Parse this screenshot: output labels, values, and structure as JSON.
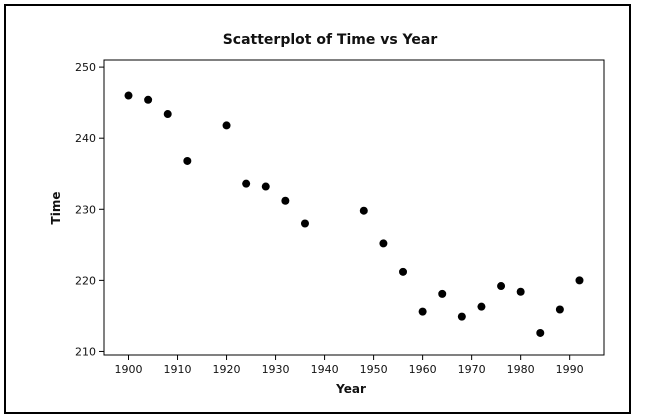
{
  "chart_data": {
    "type": "scatter",
    "title": "Scatterplot of Time vs Year",
    "xlabel": "Year",
    "ylabel": "Time",
    "xlim": [
      1895,
      1997
    ],
    "ylim": [
      209.5,
      251
    ],
    "xticks": [
      1900,
      1910,
      1920,
      1930,
      1940,
      1950,
      1960,
      1970,
      1980,
      1990
    ],
    "yticks": [
      210,
      220,
      230,
      240,
      250
    ],
    "grid": false,
    "points": [
      {
        "x": 1900,
        "y": 246.0
      },
      {
        "x": 1904,
        "y": 245.4
      },
      {
        "x": 1908,
        "y": 243.4
      },
      {
        "x": 1912,
        "y": 236.8
      },
      {
        "x": 1920,
        "y": 241.8
      },
      {
        "x": 1924,
        "y": 233.6
      },
      {
        "x": 1928,
        "y": 233.2
      },
      {
        "x": 1932,
        "y": 231.2
      },
      {
        "x": 1936,
        "y": 228.0
      },
      {
        "x": 1948,
        "y": 229.8
      },
      {
        "x": 1952,
        "y": 225.2
      },
      {
        "x": 1956,
        "y": 221.2
      },
      {
        "x": 1960,
        "y": 215.6
      },
      {
        "x": 1964,
        "y": 218.1
      },
      {
        "x": 1968,
        "y": 214.9
      },
      {
        "x": 1972,
        "y": 216.3
      },
      {
        "x": 1976,
        "y": 219.2
      },
      {
        "x": 1980,
        "y": 218.4
      },
      {
        "x": 1984,
        "y": 212.6
      },
      {
        "x": 1988,
        "y": 215.9
      },
      {
        "x": 1992,
        "y": 220.0
      }
    ],
    "marker_color": "#000000"
  }
}
